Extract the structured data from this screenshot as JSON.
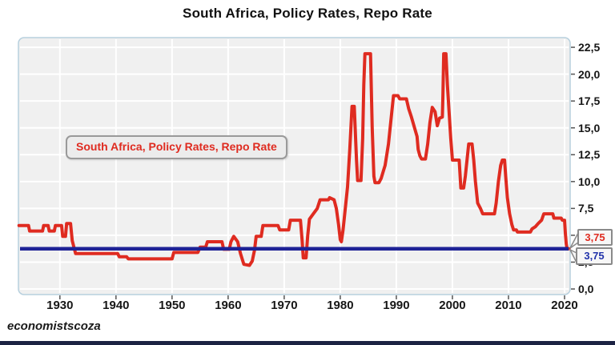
{
  "page": {
    "title": "South Africa, Policy Rates, Repo Rate",
    "source": "economistscoza"
  },
  "legend": {
    "label": "South Africa, Policy Rates, Repo Rate"
  },
  "annotations": {
    "red_callout_value": "3,75",
    "blue_callout_value": "3,75"
  },
  "colors": {
    "series_red": "#df2b20",
    "reference_blue": "#1e2296",
    "plot_background": "#f0f0f0",
    "grid": "#ffffff",
    "plot_border": "#b7d0de",
    "tick": "#555555",
    "bottom_bar": "#1c2343",
    "callout_red_text": "#df2b20",
    "callout_blue_text": "#2233aa"
  },
  "chart_data": {
    "type": "line",
    "title": "South Africa, Policy Rates, Repo Rate",
    "xlabel": "",
    "ylabel": "",
    "grid": true,
    "legend_position": "middle-left",
    "x_axis": {
      "range": [
        1922.6,
        2021.0
      ],
      "tick_values": [
        1930,
        1940,
        1950,
        1960,
        1970,
        1980,
        1990,
        2000,
        2010,
        2020
      ],
      "tick_labels": [
        "1930",
        "1940",
        "1950",
        "1960",
        "1970",
        "1980",
        "1990",
        "2000",
        "2010",
        "2020"
      ]
    },
    "y_axis": {
      "position": "right",
      "range": [
        -0.52,
        23.4
      ],
      "tick_values": [
        0,
        2.5,
        5,
        7.5,
        10,
        12.5,
        15,
        17.5,
        20,
        22.5
      ],
      "tick_labels": [
        "0,0",
        "2,5",
        "5,0",
        "7,5",
        "10,0",
        "12,5",
        "15,0",
        "17,5",
        "20,0",
        "22,5"
      ]
    },
    "reference_line": {
      "value": 3.75,
      "label": "3,75"
    },
    "series": [
      {
        "name": "South Africa, Policy Rates, Repo Rate",
        "final_value_label": "3,75",
        "points": [
          [
            1922.7,
            5.9
          ],
          [
            1924.4,
            5.9
          ],
          [
            1924.6,
            5.4
          ],
          [
            1926.9,
            5.4
          ],
          [
            1927.1,
            5.9
          ],
          [
            1927.9,
            5.9
          ],
          [
            1928.1,
            5.4
          ],
          [
            1929.0,
            5.4
          ],
          [
            1929.2,
            5.9
          ],
          [
            1930.3,
            5.9
          ],
          [
            1930.5,
            4.9
          ],
          [
            1931.0,
            4.9
          ],
          [
            1931.2,
            6.1
          ],
          [
            1931.9,
            6.1
          ],
          [
            1932.2,
            4.5
          ],
          [
            1932.5,
            3.9
          ],
          [
            1932.8,
            3.3
          ],
          [
            1940.3,
            3.3
          ],
          [
            1940.6,
            3.0
          ],
          [
            1941.9,
            3.0
          ],
          [
            1942.2,
            2.8
          ],
          [
            1950.0,
            2.8
          ],
          [
            1950.3,
            3.4
          ],
          [
            1954.6,
            3.4
          ],
          [
            1955.0,
            3.9
          ],
          [
            1956.0,
            3.9
          ],
          [
            1956.3,
            4.4
          ],
          [
            1958.9,
            4.4
          ],
          [
            1959.2,
            3.7
          ],
          [
            1960.2,
            3.7
          ],
          [
            1960.5,
            4.4
          ],
          [
            1961.0,
            4.9
          ],
          [
            1961.7,
            4.4
          ],
          [
            1962.2,
            3.3
          ],
          [
            1962.8,
            2.3
          ],
          [
            1963.8,
            2.2
          ],
          [
            1964.3,
            2.6
          ],
          [
            1964.7,
            3.6
          ],
          [
            1965.0,
            4.9
          ],
          [
            1965.9,
            4.9
          ],
          [
            1966.2,
            5.9
          ],
          [
            1968.9,
            5.9
          ],
          [
            1969.2,
            5.5
          ],
          [
            1970.8,
            5.5
          ],
          [
            1971.1,
            6.4
          ],
          [
            1972.9,
            6.4
          ],
          [
            1973.2,
            4.5
          ],
          [
            1973.4,
            2.9
          ],
          [
            1973.9,
            2.9
          ],
          [
            1974.2,
            5.0
          ],
          [
            1974.5,
            6.5
          ],
          [
            1975.2,
            7.0
          ],
          [
            1975.9,
            7.5
          ],
          [
            1976.4,
            8.3
          ],
          [
            1977.9,
            8.3
          ],
          [
            1978.1,
            8.5
          ],
          [
            1978.9,
            8.3
          ],
          [
            1979.3,
            7.5
          ],
          [
            1979.7,
            6.0
          ],
          [
            1980.0,
            4.6
          ],
          [
            1980.2,
            4.4
          ],
          [
            1980.5,
            5.5
          ],
          [
            1980.8,
            7.0
          ],
          [
            1981.3,
            9.5
          ],
          [
            1981.7,
            13.0
          ],
          [
            1982.0,
            16.0
          ],
          [
            1982.1,
            17.0
          ],
          [
            1982.5,
            17.0
          ],
          [
            1982.9,
            12.0
          ],
          [
            1983.1,
            10.1
          ],
          [
            1983.7,
            10.1
          ],
          [
            1984.0,
            14.0
          ],
          [
            1984.2,
            19.0
          ],
          [
            1984.4,
            21.9
          ],
          [
            1985.4,
            21.9
          ],
          [
            1985.7,
            15.0
          ],
          [
            1986.0,
            10.5
          ],
          [
            1986.2,
            9.9
          ],
          [
            1986.9,
            9.9
          ],
          [
            1987.3,
            10.3
          ],
          [
            1987.7,
            11.0
          ],
          [
            1988.0,
            11.5
          ],
          [
            1988.3,
            12.5
          ],
          [
            1988.6,
            13.5
          ],
          [
            1988.9,
            15.0
          ],
          [
            1989.2,
            16.5
          ],
          [
            1989.5,
            18.0
          ],
          [
            1990.3,
            18.0
          ],
          [
            1990.6,
            17.7
          ],
          [
            1991.8,
            17.7
          ],
          [
            1992.2,
            16.8
          ],
          [
            1992.7,
            16.0
          ],
          [
            1993.2,
            15.1
          ],
          [
            1993.7,
            14.2
          ],
          [
            1993.9,
            13.0
          ],
          [
            1994.2,
            12.4
          ],
          [
            1994.5,
            12.1
          ],
          [
            1995.2,
            12.1
          ],
          [
            1995.6,
            13.5
          ],
          [
            1996.0,
            15.5
          ],
          [
            1996.4,
            16.9
          ],
          [
            1996.9,
            16.5
          ],
          [
            1997.3,
            15.2
          ],
          [
            1997.7,
            15.9
          ],
          [
            1998.2,
            16.0
          ],
          [
            1998.3,
            18.0
          ],
          [
            1998.45,
            21.9
          ],
          [
            1998.85,
            21.9
          ],
          [
            1999.1,
            19.0
          ],
          [
            1999.4,
            16.5
          ],
          [
            1999.7,
            14.0
          ],
          [
            2000.0,
            12.0
          ],
          [
            2001.2,
            12.0
          ],
          [
            2001.5,
            9.4
          ],
          [
            2002.0,
            9.4
          ],
          [
            2002.3,
            10.5
          ],
          [
            2002.6,
            12.0
          ],
          [
            2002.9,
            13.5
          ],
          [
            2003.5,
            13.5
          ],
          [
            2003.8,
            12.0
          ],
          [
            2004.1,
            10.0
          ],
          [
            2004.5,
            8.0
          ],
          [
            2005.0,
            7.5
          ],
          [
            2005.4,
            7.0
          ],
          [
            2007.5,
            7.0
          ],
          [
            2007.8,
            8.0
          ],
          [
            2008.2,
            10.0
          ],
          [
            2008.6,
            11.5
          ],
          [
            2008.9,
            12.0
          ],
          [
            2009.3,
            12.0
          ],
          [
            2009.5,
            10.5
          ],
          [
            2009.8,
            8.5
          ],
          [
            2010.2,
            7.0
          ],
          [
            2010.6,
            6.0
          ],
          [
            2010.9,
            5.5
          ],
          [
            2011.4,
            5.5
          ],
          [
            2011.6,
            5.3
          ],
          [
            2013.9,
            5.3
          ],
          [
            2014.2,
            5.6
          ],
          [
            2014.8,
            5.8
          ],
          [
            2015.3,
            6.1
          ],
          [
            2015.9,
            6.4
          ],
          [
            2016.3,
            7.0
          ],
          [
            2017.9,
            7.0
          ],
          [
            2018.1,
            6.6
          ],
          [
            2019.4,
            6.6
          ],
          [
            2019.6,
            6.4
          ],
          [
            2020.0,
            6.4
          ],
          [
            2020.15,
            5.2
          ],
          [
            2020.3,
            4.2
          ],
          [
            2020.45,
            3.75
          ],
          [
            2020.8,
            3.75
          ]
        ]
      }
    ]
  }
}
